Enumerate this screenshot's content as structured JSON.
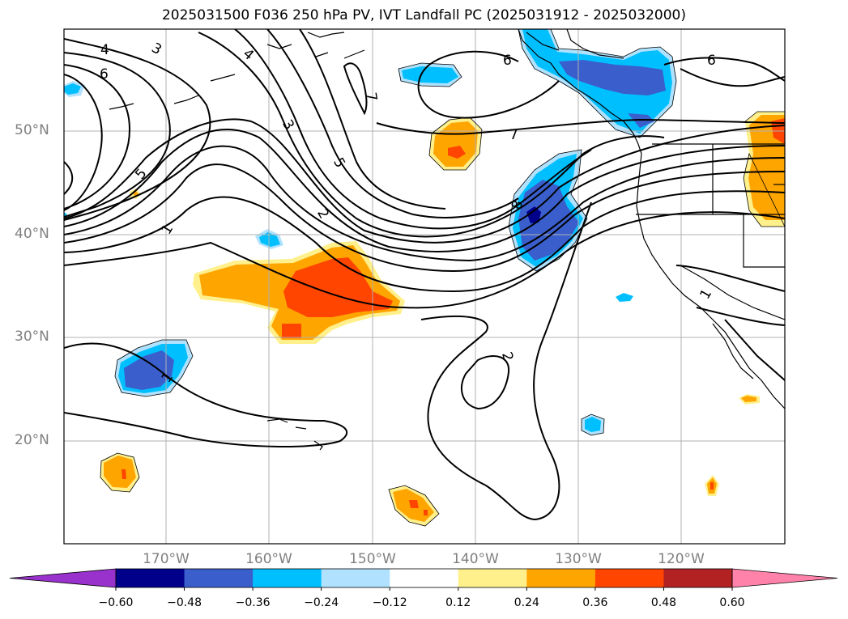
{
  "title": "2025031500 F036 250 hPa PV, IVT Landfall PC (2025031912 - 2025032000)",
  "lat_labels": [
    "50°N",
    "40°N",
    "30°N",
    "20°N"
  ],
  "lon_labels": [
    "170°W",
    "160°W",
    "150°W",
    "140°W",
    "130°W",
    "120°W"
  ],
  "contour_labels": [
    "4",
    "3",
    "6",
    "4",
    "7",
    "6",
    "6",
    "7",
    "3",
    "5",
    "5",
    "2",
    "1",
    "8",
    "2",
    "1",
    "1"
  ],
  "colorbar": {
    "tick_labels": [
      "−0.60",
      "−0.48",
      "−0.36",
      "−0.24",
      "−0.12",
      "0.12",
      "0.24",
      "0.36",
      "0.48",
      "0.60"
    ],
    "colors": [
      "#9932cc",
      "#00008b",
      "#3a5fcd",
      "#00bfff",
      "#b0e2ff",
      "#ffffff",
      "#fff08c",
      "#ffa500",
      "#ff4500",
      "#b22222",
      "#ff82ab"
    ]
  }
}
